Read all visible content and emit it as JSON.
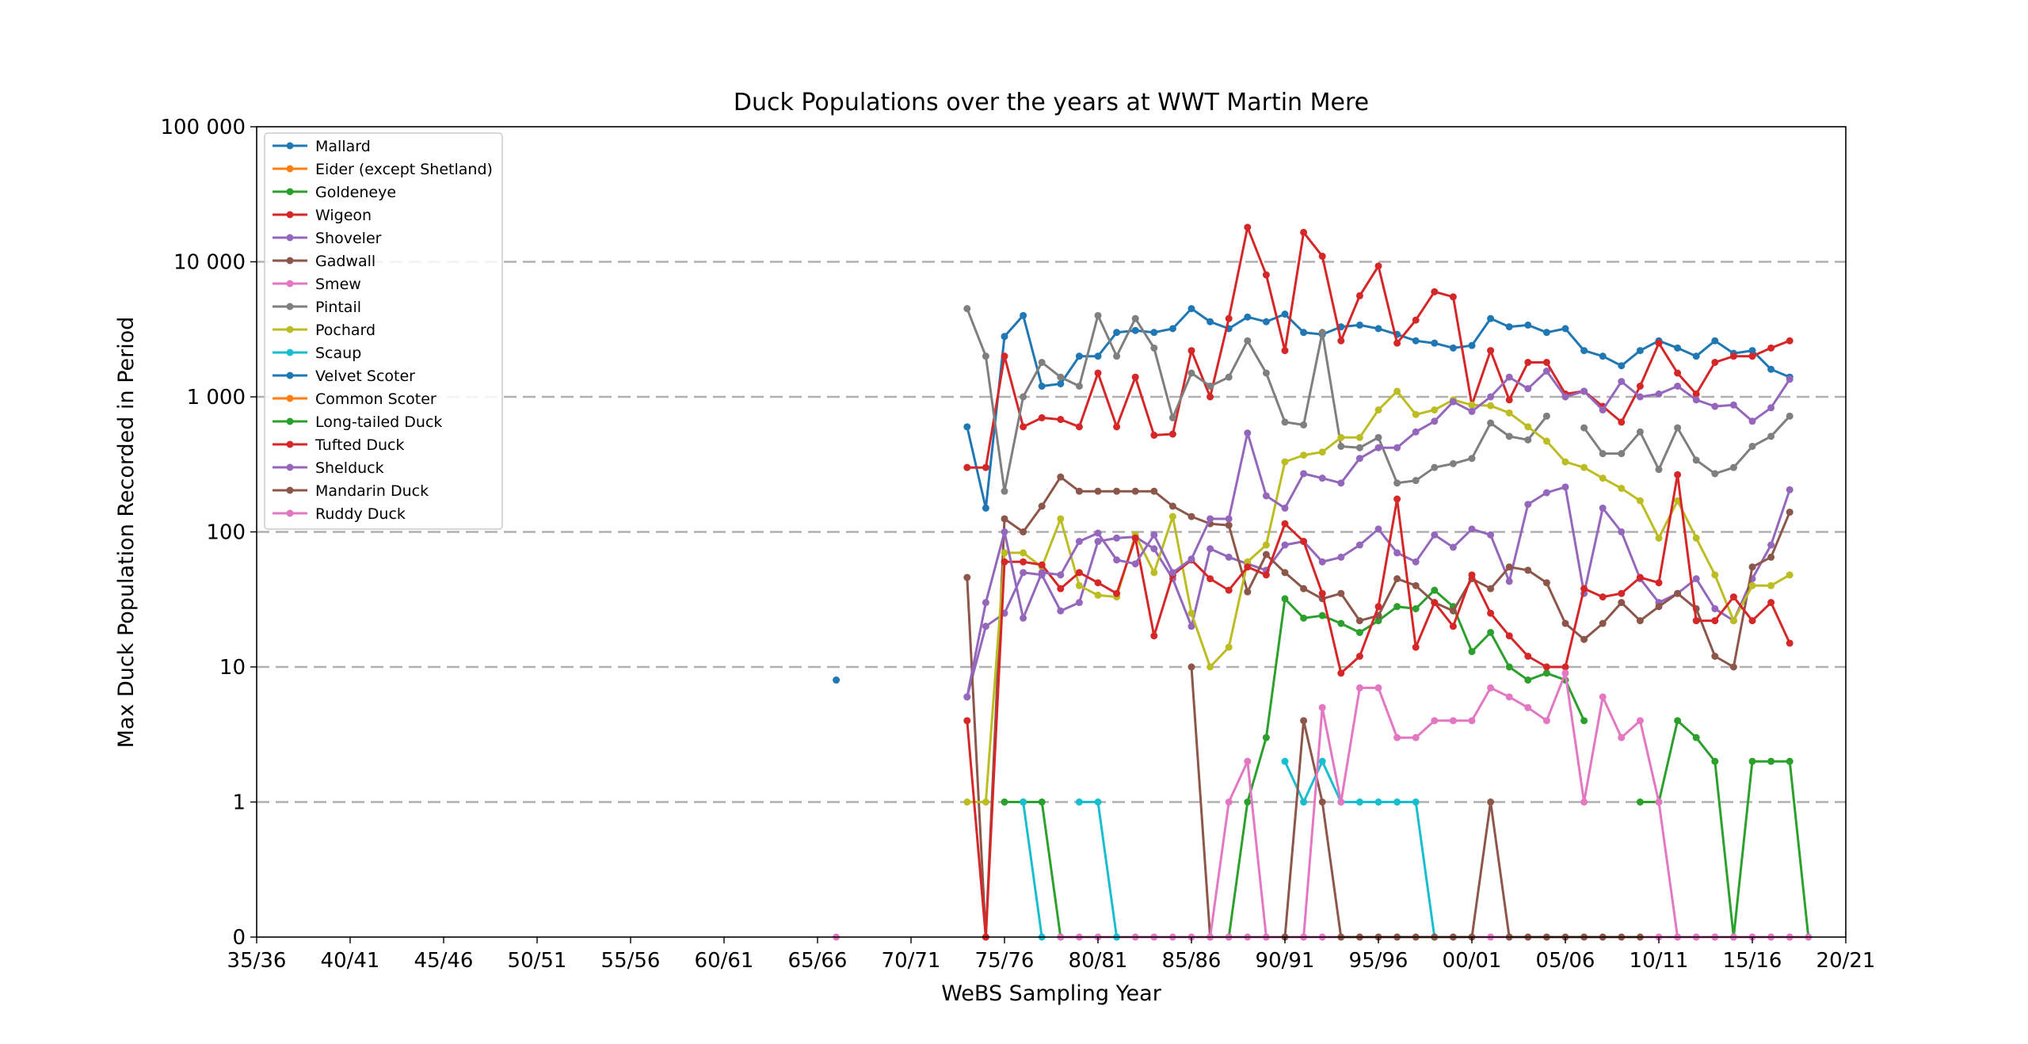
{
  "chart_data": {
    "type": "line",
    "title": "Duck Populations over the years at WWT Martin Mere",
    "xlabel": "WeBS Sampling Year",
    "ylabel": "Max Duck Population Recorded in Period",
    "y_scale": "symlog",
    "grid": "horizontal dashed at y ticks",
    "legend_position": "top-left",
    "x_ticks": [
      "35/36",
      "40/41",
      "45/46",
      "50/51",
      "55/56",
      "60/61",
      "65/66",
      "70/71",
      "75/76",
      "80/81",
      "85/86",
      "90/91",
      "95/96",
      "00/01",
      "05/06",
      "10/11",
      "15/16",
      "20/21"
    ],
    "y_ticks": [
      "0",
      "1",
      "10",
      "100",
      "1 000",
      "10 000",
      "100 000"
    ],
    "xlim_start_year": [
      1935,
      2020
    ],
    "ylim": [
      0,
      100000
    ],
    "series": [
      {
        "name": "Mallard",
        "color": "#1f77b4",
        "start": 1973,
        "values": [
          600,
          150,
          2800,
          4000,
          1200,
          1250,
          2000,
          2000,
          3000,
          3100,
          3000,
          3200,
          4500,
          3600,
          3200,
          3900,
          3600,
          4100,
          3000,
          2900,
          3300,
          3400,
          3200,
          2900,
          2600,
          2500,
          2300,
          2400,
          3800,
          3300,
          3400,
          3000,
          3200,
          2200,
          2000,
          1700,
          2200,
          2600,
          2300,
          2000,
          2600,
          2100,
          2200,
          1600,
          1400
        ]
      },
      {
        "name": "Eider (except Shetland)",
        "color": "#ff7f0e",
        "start": 1973,
        "values": []
      },
      {
        "name": "Goldeneye",
        "color": "#2ca02c",
        "start": 1975,
        "values": [
          1,
          1,
          1,
          0,
          null,
          null,
          null,
          null,
          null,
          null,
          null,
          null,
          0,
          1,
          3,
          32,
          23,
          24,
          21,
          18,
          22,
          28,
          27,
          37,
          28,
          13,
          18,
          10,
          8,
          9,
          8,
          4,
          null,
          null,
          1,
          1,
          4,
          3,
          2,
          0,
          2,
          2,
          2,
          0
        ]
      },
      {
        "name": "Wigeon",
        "color": "#d62728",
        "start": 1973,
        "values": [
          300,
          300,
          2000,
          600,
          700,
          680,
          600,
          1500,
          600,
          1400,
          520,
          530,
          2200,
          1000,
          3800,
          18000,
          8000,
          2200,
          16500,
          11000,
          2600,
          5600,
          9300,
          2500,
          3700,
          6000,
          5500,
          870,
          2200,
          950,
          1800,
          1800,
          1050,
          1100,
          850,
          650,
          1200,
          2500,
          1500,
          1050,
          1800,
          2000,
          2000,
          2300,
          2600
        ]
      },
      {
        "name": "Shoveler",
        "color": "#9467bd",
        "start": 1973,
        "values": [
          6,
          20,
          25,
          50,
          48,
          26,
          30,
          85,
          90,
          92,
          75,
          45,
          20,
          75,
          65,
          58,
          52,
          80,
          85,
          60,
          65,
          80,
          105,
          70,
          60,
          95,
          77,
          105,
          95,
          43,
          160,
          195,
          215,
          35,
          150,
          100,
          45,
          30,
          35,
          45,
          27,
          22,
          45,
          80,
          205
        ]
      },
      {
        "name": "Gadwall",
        "color": "#8c564b",
        "start": 1973,
        "values": [
          46,
          0,
          125,
          100,
          155,
          255,
          200,
          200,
          200,
          200,
          200,
          155,
          130,
          115,
          112,
          36,
          68,
          50,
          38,
          32,
          35,
          22,
          24,
          45,
          40,
          30,
          26,
          45,
          38,
          55,
          52,
          42,
          21,
          16,
          21,
          30,
          22,
          28,
          35,
          27,
          12,
          10,
          55,
          65,
          140
        ]
      },
      {
        "name": "Smew",
        "color": "#e377c2",
        "start": 1973,
        "values": [
          null,
          null,
          null,
          null,
          null,
          0,
          0,
          0,
          0,
          0,
          0,
          0,
          0,
          0,
          0,
          0,
          0,
          0,
          0,
          0,
          0,
          0,
          0,
          0,
          0,
          0,
          0,
          0,
          0,
          0,
          0,
          0,
          0,
          0,
          0,
          0,
          0,
          0,
          0,
          0,
          0,
          0,
          0,
          0,
          0
        ]
      },
      {
        "name": "Pintail",
        "color": "#7f7f7f",
        "start": 1973,
        "values": [
          4500,
          2000,
          200,
          1000,
          1800,
          1400,
          1200,
          4000,
          2000,
          3800,
          2300,
          700,
          1500,
          1200,
          1400,
          2600,
          1500,
          650,
          620,
          3000,
          430,
          420,
          500,
          230,
          240,
          300,
          320,
          350,
          640,
          510,
          480,
          720,
          null,
          590,
          380,
          380,
          550,
          290,
          590,
          340,
          270,
          300,
          430,
          510,
          720
        ]
      },
      {
        "name": "Pochard",
        "color": "#bcbd22",
        "start": 1973,
        "values": [
          1,
          1,
          70,
          70,
          55,
          125,
          40,
          34,
          33,
          95,
          50,
          130,
          25,
          10,
          14,
          60,
          80,
          330,
          370,
          390,
          500,
          500,
          800,
          1100,
          740,
          800,
          950,
          870,
          860,
          760,
          600,
          470,
          330,
          300,
          250,
          210,
          170,
          90,
          170,
          90,
          48,
          22,
          40,
          40,
          48
        ]
      },
      {
        "name": "Scaup",
        "color": "#17becf",
        "start": 1973,
        "values": [
          null,
          null,
          null,
          1,
          0,
          null,
          1,
          1,
          0,
          null,
          null,
          null,
          null,
          null,
          null,
          null,
          null,
          2,
          1,
          2,
          1,
          1,
          1,
          1,
          1,
          0
        ]
      },
      {
        "name": "Velvet Scoter",
        "color": "#1f77b4",
        "start": 1966,
        "values": [
          8
        ]
      },
      {
        "name": "Common Scoter",
        "color": "#ff7f0e",
        "start": 1973,
        "values": []
      },
      {
        "name": "Long-tailed Duck",
        "color": "#2ca02c",
        "start": 1973,
        "values": []
      },
      {
        "name": "Tufted Duck",
        "color": "#d62728",
        "start": 1973,
        "values": [
          4,
          0,
          60,
          60,
          57,
          38,
          50,
          42,
          35,
          90,
          17,
          48,
          62,
          45,
          37,
          55,
          48,
          115,
          85,
          35,
          9,
          12,
          28,
          175,
          14,
          30,
          20,
          48,
          25,
          17,
          12,
          10,
          10,
          38,
          33,
          35,
          46,
          42,
          265,
          22,
          22,
          33,
          22,
          30,
          15
        ]
      },
      {
        "name": "Shelduck",
        "color": "#9467bd",
        "start": 1973,
        "values": [
          6,
          30,
          100,
          23,
          50,
          48,
          85,
          98,
          62,
          58,
          95,
          50,
          63,
          125,
          125,
          540,
          185,
          150,
          270,
          250,
          230,
          350,
          420,
          420,
          550,
          660,
          920,
          780,
          1000,
          1400,
          1150,
          1550,
          1000,
          1100,
          800,
          1300,
          1000,
          1050,
          1200,
          950,
          850,
          870,
          660,
          830,
          1350
        ]
      },
      {
        "name": "Mandarin Duck",
        "color": "#8c564b",
        "start": 1973,
        "values": [
          null,
          null,
          null,
          null,
          null,
          null,
          null,
          null,
          null,
          null,
          null,
          null,
          10,
          0,
          null,
          null,
          null,
          0,
          4,
          1,
          0,
          0,
          0,
          0,
          0,
          0,
          0,
          0,
          1,
          0,
          0,
          0,
          0,
          0,
          0,
          0,
          0
        ]
      },
      {
        "name": "Ruddy Duck",
        "color": "#e377c2",
        "start": 1966,
        "values": [
          0,
          null,
          null,
          null,
          null,
          null,
          null,
          null,
          null,
          null,
          null,
          null,
          null,
          null,
          null,
          null,
          null,
          null,
          null,
          null,
          0,
          1,
          2,
          0,
          null,
          0,
          5,
          1,
          7,
          7,
          3,
          3,
          4,
          4,
          4,
          7,
          6,
          5,
          4,
          9,
          1,
          6,
          3,
          4,
          1,
          0,
          0,
          0,
          0,
          0,
          0,
          0,
          0
        ]
      }
    ]
  }
}
